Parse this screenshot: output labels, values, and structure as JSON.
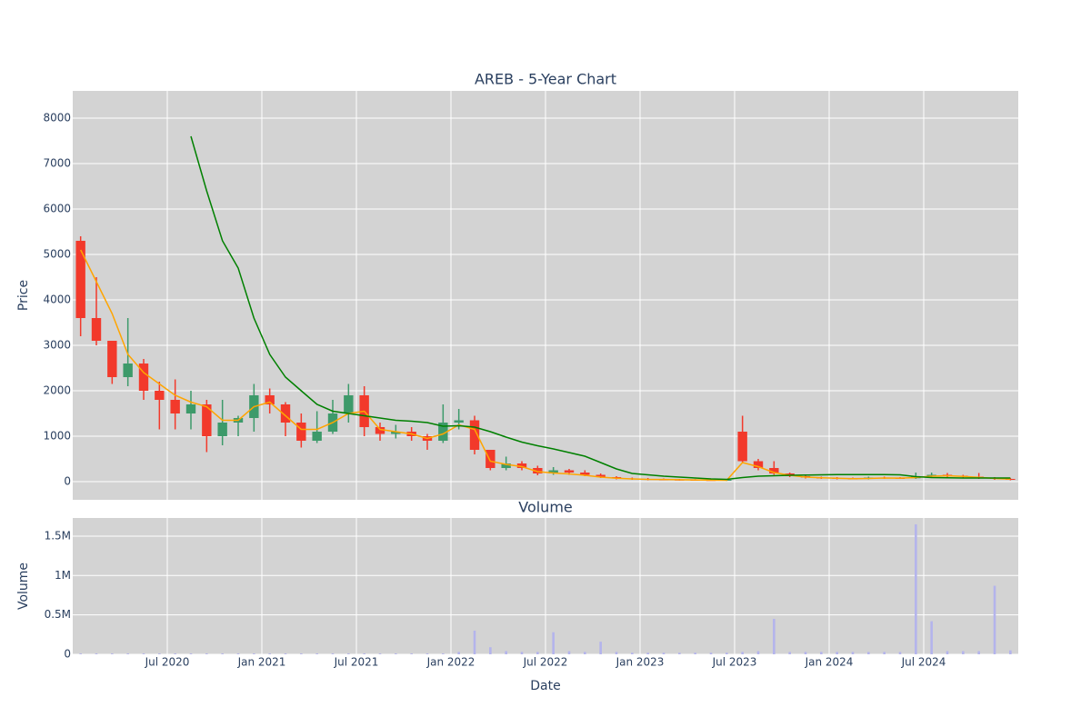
{
  "chart_data": [
    {
      "type": "candlestick",
      "title": "AREB - 5-Year Chart",
      "y_label": "Price",
      "x": [
        "2020-01",
        "2020-02",
        "2020-03",
        "2020-04",
        "2020-05",
        "2020-06",
        "2020-07",
        "2020-08",
        "2020-09",
        "2020-10",
        "2020-11",
        "2020-12",
        "2021-01",
        "2021-02",
        "2021-03",
        "2021-04",
        "2021-05",
        "2021-06",
        "2021-07",
        "2021-08",
        "2021-09",
        "2021-10",
        "2021-11",
        "2021-12",
        "2022-01",
        "2022-02",
        "2022-03",
        "2022-04",
        "2022-05",
        "2022-06",
        "2022-07",
        "2022-08",
        "2022-09",
        "2022-10",
        "2022-11",
        "2022-12",
        "2023-01",
        "2023-02",
        "2023-03",
        "2023-04",
        "2023-05",
        "2023-06",
        "2023-07",
        "2023-08",
        "2023-09",
        "2023-10",
        "2023-11",
        "2023-12",
        "2024-01",
        "2024-02",
        "2024-03",
        "2024-04",
        "2024-05",
        "2024-06",
        "2024-07",
        "2024-08",
        "2024-09",
        "2024-10",
        "2024-11",
        "2024-12"
      ],
      "open": [
        5300,
        3600,
        3100,
        2300,
        2600,
        2000,
        1800,
        1500,
        1700,
        1000,
        1300,
        1400,
        1900,
        1700,
        1300,
        900,
        1100,
        1500,
        1900,
        1200,
        1050,
        1100,
        1000,
        900,
        1300,
        1350,
        700,
        300,
        400,
        300,
        180,
        250,
        200,
        150,
        100,
        70,
        60,
        50,
        45,
        40,
        35,
        30,
        1100,
        450,
        300,
        180,
        120,
        90,
        80,
        70,
        60,
        90,
        80,
        75,
        120,
        150,
        130,
        110,
        80,
        60
      ],
      "high": [
        5400,
        4500,
        3100,
        3600,
        2700,
        2200,
        2250,
        2000,
        1800,
        1800,
        1450,
        2150,
        2050,
        1750,
        1500,
        1550,
        1800,
        2150,
        2100,
        1300,
        1250,
        1200,
        1050,
        1700,
        1600,
        1450,
        700,
        550,
        450,
        350,
        320,
        280,
        250,
        180,
        120,
        90,
        80,
        70,
        60,
        55,
        50,
        60,
        1450,
        500,
        450,
        200,
        130,
        110,
        100,
        90,
        110,
        110,
        100,
        200,
        200,
        190,
        150,
        190,
        100,
        80
      ],
      "low": [
        3200,
        3000,
        2150,
        2100,
        1800,
        1150,
        1150,
        1150,
        650,
        800,
        1000,
        1100,
        1500,
        1000,
        750,
        850,
        1050,
        1300,
        1000,
        900,
        950,
        900,
        700,
        850,
        1150,
        600,
        250,
        250,
        250,
        140,
        150,
        150,
        120,
        80,
        50,
        40,
        30,
        30,
        25,
        20,
        20,
        15,
        400,
        250,
        150,
        100,
        70,
        60,
        50,
        50,
        50,
        60,
        60,
        60,
        90,
        100,
        90,
        60,
        40,
        30
      ],
      "close": [
        3600,
        3100,
        2300,
        2600,
        2000,
        1800,
        1500,
        1700,
        1000,
        1300,
        1400,
        1900,
        1700,
        1300,
        900,
        1100,
        1500,
        1900,
        1200,
        1050,
        1100,
        1000,
        900,
        1300,
        1350,
        700,
        300,
        400,
        300,
        180,
        250,
        200,
        150,
        100,
        70,
        60,
        50,
        45,
        40,
        35,
        30,
        40,
        450,
        300,
        180,
        120,
        90,
        80,
        70,
        60,
        90,
        80,
        75,
        120,
        150,
        130,
        110,
        80,
        60,
        50
      ],
      "increasing_color": "#3d9a6a",
      "decreasing_color": "#f2392b",
      "ma_short": {
        "color": "#ffa500",
        "values": [
          5100,
          4400,
          3700,
          2800,
          2400,
          2150,
          1900,
          1750,
          1650,
          1350,
          1350,
          1650,
          1750,
          1450,
          1150,
          1150,
          1300,
          1500,
          1550,
          1150,
          1100,
          1050,
          950,
          1050,
          1250,
          1150,
          450,
          380,
          330,
          220,
          190,
          170,
          140,
          100,
          75,
          60,
          50,
          48,
          42,
          38,
          33,
          30,
          420,
          330,
          200,
          140,
          100,
          85,
          75,
          65,
          70,
          80,
          78,
          90,
          120,
          130,
          115,
          95,
          70,
          55
        ]
      },
      "ma_long": {
        "color": "#008000",
        "values": [
          null,
          null,
          null,
          null,
          null,
          null,
          null,
          7600,
          6400,
          5300,
          4700,
          3600,
          2800,
          2300,
          2000,
          1700,
          1550,
          1500,
          1450,
          1400,
          1350,
          1330,
          1300,
          1220,
          1230,
          1200,
          1100,
          980,
          870,
          790,
          720,
          640,
          560,
          420,
          280,
          180,
          150,
          120,
          100,
          80,
          60,
          50,
          90,
          120,
          130,
          140,
          145,
          150,
          155,
          155,
          155,
          155,
          150,
          110,
          90,
          85,
          80,
          80,
          80,
          80
        ]
      },
      "xlim": [
        "2020-01",
        "2025-01"
      ],
      "xticks": [
        "2020-07",
        "2021-01",
        "2021-07",
        "2022-01",
        "2022-07",
        "2023-01",
        "2023-07",
        "2024-01",
        "2024-07"
      ],
      "ylim": [
        -400,
        8600
      ],
      "yticks": [
        0,
        1000,
        2000,
        3000,
        4000,
        5000,
        6000,
        7000,
        8000
      ],
      "grid": true
    },
    {
      "type": "bar",
      "title": "Volume",
      "x_label": "Date",
      "y_label": "Volume",
      "x": [
        "2020-01",
        "2020-02",
        "2020-03",
        "2020-04",
        "2020-05",
        "2020-06",
        "2020-07",
        "2020-08",
        "2020-09",
        "2020-10",
        "2020-11",
        "2020-12",
        "2021-01",
        "2021-02",
        "2021-03",
        "2021-04",
        "2021-05",
        "2021-06",
        "2021-07",
        "2021-08",
        "2021-09",
        "2021-10",
        "2021-11",
        "2021-12",
        "2022-01",
        "2022-02",
        "2022-03",
        "2022-04",
        "2022-05",
        "2022-06",
        "2022-07",
        "2022-08",
        "2022-09",
        "2022-10",
        "2022-11",
        "2022-12",
        "2023-01",
        "2023-02",
        "2023-03",
        "2023-04",
        "2023-05",
        "2023-06",
        "2023-07",
        "2023-08",
        "2023-09",
        "2023-10",
        "2023-11",
        "2023-12",
        "2024-01",
        "2024-02",
        "2024-03",
        "2024-04",
        "2024-05",
        "2024-06",
        "2024-07",
        "2024-08",
        "2024-09",
        "2024-10",
        "2024-11",
        "2024-12"
      ],
      "values": [
        10000,
        10000,
        10000,
        10000,
        10000,
        10000,
        10000,
        10000,
        10000,
        10000,
        10000,
        10000,
        10000,
        10000,
        10000,
        10000,
        10000,
        10000,
        10000,
        10000,
        10000,
        10000,
        10000,
        10000,
        30000,
        300000,
        90000,
        40000,
        30000,
        30000,
        280000,
        40000,
        30000,
        160000,
        30000,
        20000,
        20000,
        20000,
        20000,
        20000,
        20000,
        20000,
        30000,
        40000,
        450000,
        30000,
        30000,
        30000,
        30000,
        30000,
        30000,
        30000,
        30000,
        1650000,
        420000,
        40000,
        40000,
        40000,
        870000,
        50000
      ],
      "color": "#b4b4ec",
      "xlim": [
        "2020-01",
        "2025-01"
      ],
      "xticks": [
        {
          "value": "2020-07",
          "label": "Jul 2020"
        },
        {
          "value": "2021-01",
          "label": "Jan 2021"
        },
        {
          "value": "2021-07",
          "label": "Jul 2021"
        },
        {
          "value": "2022-01",
          "label": "Jan 2022"
        },
        {
          "value": "2022-07",
          "label": "Jul 2022"
        },
        {
          "value": "2023-01",
          "label": "Jan 2023"
        },
        {
          "value": "2023-07",
          "label": "Jul 2023"
        },
        {
          "value": "2024-01",
          "label": "Jan 2024"
        },
        {
          "value": "2024-07",
          "label": "Jul 2024"
        }
      ],
      "ylim": [
        0,
        1730000
      ],
      "yticks": [
        0,
        {
          "value": 500000,
          "label": "0.5M"
        },
        {
          "value": 1000000,
          "label": "1M"
        },
        {
          "value": 1500000,
          "label": "1.5M"
        }
      ],
      "grid": true
    }
  ]
}
